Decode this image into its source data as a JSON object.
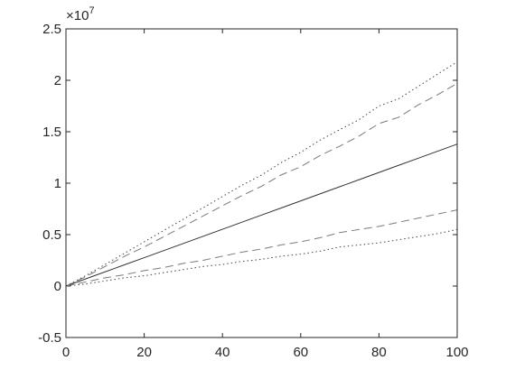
{
  "chart_data": {
    "type": "line",
    "y_multiplier": "×10",
    "y_exponent": "7",
    "x": [
      0,
      5,
      10,
      15,
      20,
      25,
      30,
      35,
      40,
      45,
      50,
      55,
      60,
      65,
      70,
      75,
      80,
      85,
      90,
      95,
      100
    ],
    "series": [
      {
        "color": "#333333",
        "style": "solid",
        "values": [
          0,
          0.069,
          0.138,
          0.207,
          0.276,
          0.345,
          0.414,
          0.483,
          0.552,
          0.621,
          0.69,
          0.759,
          0.828,
          0.897,
          0.966,
          1.035,
          1.104,
          1.173,
          1.242,
          1.311,
          1.38
        ]
      },
      {
        "color": "#7a7a7a",
        "style": "dashed",
        "values": [
          0,
          0.09,
          0.19,
          0.29,
          0.38,
          0.48,
          0.58,
          0.68,
          0.78,
          0.88,
          0.97,
          1.08,
          1.16,
          1.27,
          1.36,
          1.46,
          1.58,
          1.64,
          1.76,
          1.86,
          1.97
        ]
      },
      {
        "color": "#7a7a7a",
        "style": "dashed",
        "values": [
          0,
          0.04,
          0.08,
          0.11,
          0.15,
          0.18,
          0.22,
          0.25,
          0.29,
          0.33,
          0.36,
          0.4,
          0.43,
          0.47,
          0.52,
          0.55,
          0.58,
          0.62,
          0.66,
          0.7,
          0.74
        ]
      },
      {
        "color": "#444444",
        "style": "dotted",
        "values": [
          0,
          0.1,
          0.21,
          0.32,
          0.43,
          0.54,
          0.65,
          0.76,
          0.87,
          0.98,
          1.08,
          1.2,
          1.3,
          1.42,
          1.52,
          1.62,
          1.75,
          1.82,
          1.94,
          2.06,
          2.18
        ]
      },
      {
        "color": "#444444",
        "style": "dotted",
        "values": [
          0,
          0.02,
          0.05,
          0.08,
          0.1,
          0.13,
          0.16,
          0.19,
          0.21,
          0.24,
          0.26,
          0.29,
          0.31,
          0.34,
          0.38,
          0.4,
          0.42,
          0.45,
          0.48,
          0.51,
          0.55
        ]
      }
    ],
    "xlim": [
      0,
      100
    ],
    "xticks": [
      0,
      20,
      40,
      60,
      80,
      100
    ],
    "ylim": [
      -0.5,
      2.5
    ],
    "yticks": [
      -0.5,
      0,
      0.5,
      1,
      1.5,
      2,
      2.5
    ]
  }
}
